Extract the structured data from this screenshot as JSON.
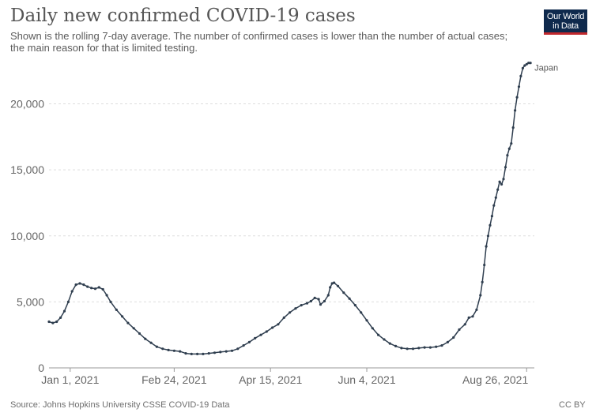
{
  "header": {
    "title": "Daily new confirmed COVID-19 cases",
    "subtitle": "Shown is the rolling 7-day average. The number of confirmed cases is lower than the number of actual cases; the main reason for that is limited testing."
  },
  "logo": {
    "line1": "Our World",
    "line2": "in Data",
    "bg": "#0f2a4d",
    "accent": "#c0282d"
  },
  "footer": {
    "source": "Source: Johns Hopkins University CSSE COVID-19 Data",
    "license": "CC BY"
  },
  "chart_data": {
    "type": "line",
    "title": "Daily new confirmed COVID-19 cases",
    "xlabel": "",
    "ylabel": "",
    "xlim": [
      "2020-12-21",
      "2021-08-30"
    ],
    "ylim": [
      0,
      23200
    ],
    "grid": "horizontal dashed",
    "line_color": "#2f3e4f",
    "y_ticks": [
      {
        "value": 0,
        "label": "0"
      },
      {
        "value": 5000,
        "label": "5,000"
      },
      {
        "value": 10000,
        "label": "10,000"
      },
      {
        "value": 15000,
        "label": "15,000"
      },
      {
        "value": 20000,
        "label": "20,000"
      }
    ],
    "x_ticks": [
      {
        "date": "2021-01-01",
        "label": "Jan 1, 2021"
      },
      {
        "date": "2021-02-24",
        "label": "Feb 24, 2021"
      },
      {
        "date": "2021-04-15",
        "label": "Apr 15, 2021"
      },
      {
        "date": "2021-06-04",
        "label": "Jun 4, 2021"
      },
      {
        "date": "2021-08-26",
        "label": "Aug 26, 2021"
      }
    ],
    "series": [
      {
        "name": "Japan",
        "points": [
          {
            "x": "2020-12-21",
            "y": 3500
          },
          {
            "x": "2020-12-23",
            "y": 3400
          },
          {
            "x": "2020-12-25",
            "y": 3500
          },
          {
            "x": "2020-12-27",
            "y": 3800
          },
          {
            "x": "2020-12-29",
            "y": 4300
          },
          {
            "x": "2020-12-31",
            "y": 5000
          },
          {
            "x": "2021-01-02",
            "y": 5800
          },
          {
            "x": "2021-01-04",
            "y": 6300
          },
          {
            "x": "2021-01-06",
            "y": 6400
          },
          {
            "x": "2021-01-08",
            "y": 6300
          },
          {
            "x": "2021-01-10",
            "y": 6150
          },
          {
            "x": "2021-01-12",
            "y": 6050
          },
          {
            "x": "2021-01-14",
            "y": 6000
          },
          {
            "x": "2021-01-16",
            "y": 6100
          },
          {
            "x": "2021-01-18",
            "y": 5950
          },
          {
            "x": "2021-01-20",
            "y": 5500
          },
          {
            "x": "2021-01-22",
            "y": 5000
          },
          {
            "x": "2021-01-25",
            "y": 4400
          },
          {
            "x": "2021-01-28",
            "y": 3900
          },
          {
            "x": "2021-01-31",
            "y": 3400
          },
          {
            "x": "2021-02-03",
            "y": 3000
          },
          {
            "x": "2021-02-06",
            "y": 2600
          },
          {
            "x": "2021-02-09",
            "y": 2200
          },
          {
            "x": "2021-02-12",
            "y": 1900
          },
          {
            "x": "2021-02-15",
            "y": 1600
          },
          {
            "x": "2021-02-18",
            "y": 1450
          },
          {
            "x": "2021-02-21",
            "y": 1350
          },
          {
            "x": "2021-02-24",
            "y": 1300
          },
          {
            "x": "2021-02-27",
            "y": 1250
          },
          {
            "x": "2021-03-02",
            "y": 1100
          },
          {
            "x": "2021-03-05",
            "y": 1050
          },
          {
            "x": "2021-03-08",
            "y": 1050
          },
          {
            "x": "2021-03-11",
            "y": 1050
          },
          {
            "x": "2021-03-14",
            "y": 1100
          },
          {
            "x": "2021-03-17",
            "y": 1150
          },
          {
            "x": "2021-03-20",
            "y": 1200
          },
          {
            "x": "2021-03-23",
            "y": 1250
          },
          {
            "x": "2021-03-26",
            "y": 1300
          },
          {
            "x": "2021-03-29",
            "y": 1450
          },
          {
            "x": "2021-04-01",
            "y": 1700
          },
          {
            "x": "2021-04-04",
            "y": 1950
          },
          {
            "x": "2021-04-07",
            "y": 2250
          },
          {
            "x": "2021-04-10",
            "y": 2500
          },
          {
            "x": "2021-04-13",
            "y": 2750
          },
          {
            "x": "2021-04-16",
            "y": 3050
          },
          {
            "x": "2021-04-19",
            "y": 3300
          },
          {
            "x": "2021-04-22",
            "y": 3800
          },
          {
            "x": "2021-04-25",
            "y": 4200
          },
          {
            "x": "2021-04-28",
            "y": 4500
          },
          {
            "x": "2021-05-01",
            "y": 4750
          },
          {
            "x": "2021-05-04",
            "y": 4900
          },
          {
            "x": "2021-05-06",
            "y": 5050
          },
          {
            "x": "2021-05-08",
            "y": 5300
          },
          {
            "x": "2021-05-10",
            "y": 5200
          },
          {
            "x": "2021-05-11",
            "y": 4800
          },
          {
            "x": "2021-05-13",
            "y": 5050
          },
          {
            "x": "2021-05-15",
            "y": 5500
          },
          {
            "x": "2021-05-16",
            "y": 6100
          },
          {
            "x": "2021-05-17",
            "y": 6400
          },
          {
            "x": "2021-05-18",
            "y": 6450
          },
          {
            "x": "2021-05-20",
            "y": 6200
          },
          {
            "x": "2021-05-23",
            "y": 5700
          },
          {
            "x": "2021-05-26",
            "y": 5250
          },
          {
            "x": "2021-05-29",
            "y": 4750
          },
          {
            "x": "2021-06-01",
            "y": 4200
          },
          {
            "x": "2021-06-04",
            "y": 3600
          },
          {
            "x": "2021-06-07",
            "y": 3000
          },
          {
            "x": "2021-06-10",
            "y": 2500
          },
          {
            "x": "2021-06-13",
            "y": 2150
          },
          {
            "x": "2021-06-16",
            "y": 1850
          },
          {
            "x": "2021-06-19",
            "y": 1650
          },
          {
            "x": "2021-06-22",
            "y": 1500
          },
          {
            "x": "2021-06-25",
            "y": 1450
          },
          {
            "x": "2021-06-28",
            "y": 1450
          },
          {
            "x": "2021-07-01",
            "y": 1500
          },
          {
            "x": "2021-07-04",
            "y": 1550
          },
          {
            "x": "2021-07-07",
            "y": 1550
          },
          {
            "x": "2021-07-10",
            "y": 1600
          },
          {
            "x": "2021-07-13",
            "y": 1700
          },
          {
            "x": "2021-07-16",
            "y": 1950
          },
          {
            "x": "2021-07-19",
            "y": 2300
          },
          {
            "x": "2021-07-22",
            "y": 2900
          },
          {
            "x": "2021-07-25",
            "y": 3300
          },
          {
            "x": "2021-07-27",
            "y": 3800
          },
          {
            "x": "2021-07-29",
            "y": 3900
          },
          {
            "x": "2021-07-31",
            "y": 4400
          },
          {
            "x": "2021-08-02",
            "y": 5500
          },
          {
            "x": "2021-08-03",
            "y": 6500
          },
          {
            "x": "2021-08-04",
            "y": 7800
          },
          {
            "x": "2021-08-05",
            "y": 9200
          },
          {
            "x": "2021-08-06",
            "y": 10000
          },
          {
            "x": "2021-08-07",
            "y": 10800
          },
          {
            "x": "2021-08-08",
            "y": 11500
          },
          {
            "x": "2021-08-09",
            "y": 12300
          },
          {
            "x": "2021-08-10",
            "y": 12900
          },
          {
            "x": "2021-08-11",
            "y": 13500
          },
          {
            "x": "2021-08-12",
            "y": 14100
          },
          {
            "x": "2021-08-13",
            "y": 13900
          },
          {
            "x": "2021-08-14",
            "y": 14300
          },
          {
            "x": "2021-08-15",
            "y": 15200
          },
          {
            "x": "2021-08-16",
            "y": 16100
          },
          {
            "x": "2021-08-17",
            "y": 16600
          },
          {
            "x": "2021-08-18",
            "y": 17000
          },
          {
            "x": "2021-08-19",
            "y": 18200
          },
          {
            "x": "2021-08-20",
            "y": 19500
          },
          {
            "x": "2021-08-21",
            "y": 20500
          },
          {
            "x": "2021-08-22",
            "y": 21300
          },
          {
            "x": "2021-08-23",
            "y": 22100
          },
          {
            "x": "2021-08-24",
            "y": 22700
          },
          {
            "x": "2021-08-25",
            "y": 22900
          },
          {
            "x": "2021-08-26",
            "y": 23000
          },
          {
            "x": "2021-08-27",
            "y": 23100
          },
          {
            "x": "2021-08-28",
            "y": 23100
          }
        ]
      }
    ]
  }
}
